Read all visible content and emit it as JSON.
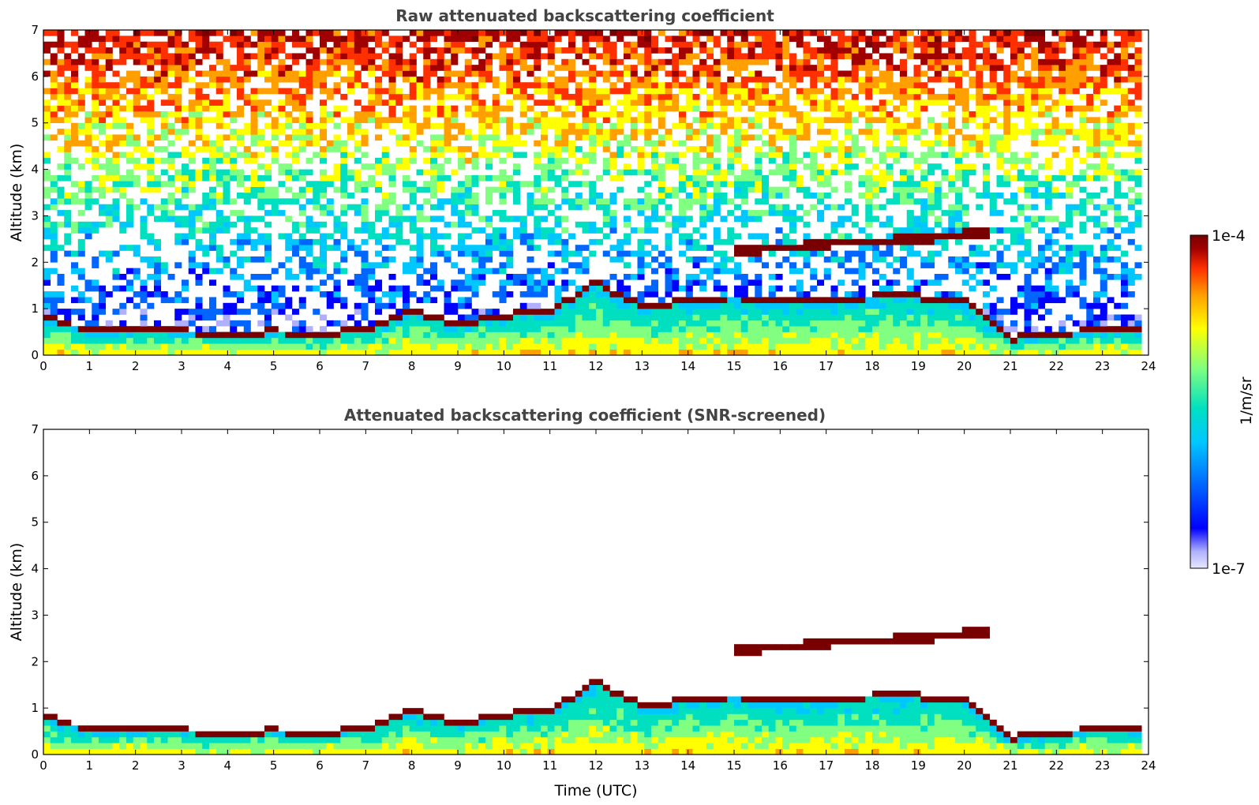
{
  "chart_data": [
    {
      "type": "heatmap",
      "title": "Raw attenuated backscattering coefficient",
      "xlabel": "",
      "ylabel": "Altitude (km)",
      "xlim": [
        0,
        24
      ],
      "ylim": [
        0,
        7
      ],
      "xticks": [
        "0",
        "1",
        "2",
        "3",
        "4",
        "5",
        "6",
        "7",
        "8",
        "9",
        "10",
        "11",
        "12",
        "13",
        "14",
        "15",
        "16",
        "17",
        "18",
        "19",
        "20",
        "21",
        "22",
        "23",
        "24"
      ],
      "yticks": [
        "0",
        "1",
        "2",
        "3",
        "4",
        "5",
        "6",
        "7"
      ],
      "screened": false
    },
    {
      "type": "heatmap",
      "title": "Attenuated backscattering coefficient (SNR-screened)",
      "xlabel": "Time (UTC)",
      "ylabel": "Altitude (km)",
      "xlim": [
        0,
        24
      ],
      "ylim": [
        0,
        7
      ],
      "xticks": [
        "0",
        "1",
        "2",
        "3",
        "4",
        "5",
        "6",
        "7",
        "8",
        "9",
        "10",
        "11",
        "12",
        "13",
        "14",
        "15",
        "16",
        "17",
        "18",
        "19",
        "20",
        "21",
        "22",
        "23",
        "24"
      ],
      "yticks": [
        "0",
        "1",
        "2",
        "3",
        "4",
        "5",
        "6",
        "7"
      ],
      "screened": true
    }
  ],
  "colorbar": {
    "label": "1/m/sr",
    "max_label": "1e-4",
    "min_label": "1e-7",
    "colors": [
      "#e8e8ff",
      "#b0b0ff",
      "#0000ff",
      "#0066ff",
      "#00c8ff",
      "#00e0c0",
      "#80ff80",
      "#ffff00",
      "#ffa000",
      "#ff3000",
      "#a00000",
      "#780000"
    ]
  },
  "layers": {
    "aerosol_layer_top_km": [
      [
        0,
        0.8
      ],
      [
        1,
        0.45
      ],
      [
        2,
        0.5
      ],
      [
        3,
        0.45
      ],
      [
        4,
        0.4
      ],
      [
        5,
        0.45
      ],
      [
        6,
        0.4
      ],
      [
        7,
        0.5
      ],
      [
        8,
        0.9
      ],
      [
        9,
        0.6
      ],
      [
        10,
        0.8
      ],
      [
        11,
        0.9
      ],
      [
        12,
        1.5
      ],
      [
        13,
        1.0
      ],
      [
        14,
        1.1
      ],
      [
        15,
        1.2
      ],
      [
        16,
        1.1
      ],
      [
        17,
        1.1
      ],
      [
        18,
        1.2
      ],
      [
        19,
        1.2
      ],
      [
        20,
        1.1
      ],
      [
        21,
        0.3
      ],
      [
        22,
        0.4
      ],
      [
        23,
        0.5
      ],
      [
        24,
        0.5
      ]
    ],
    "cloud_layer_km": [
      [
        15.0,
        2.25
      ],
      [
        16.0,
        2.3
      ],
      [
        17.0,
        2.4
      ],
      [
        18.0,
        2.45
      ],
      [
        19.0,
        2.5
      ],
      [
        20.0,
        2.6
      ],
      [
        20.5,
        2.6
      ]
    ]
  }
}
